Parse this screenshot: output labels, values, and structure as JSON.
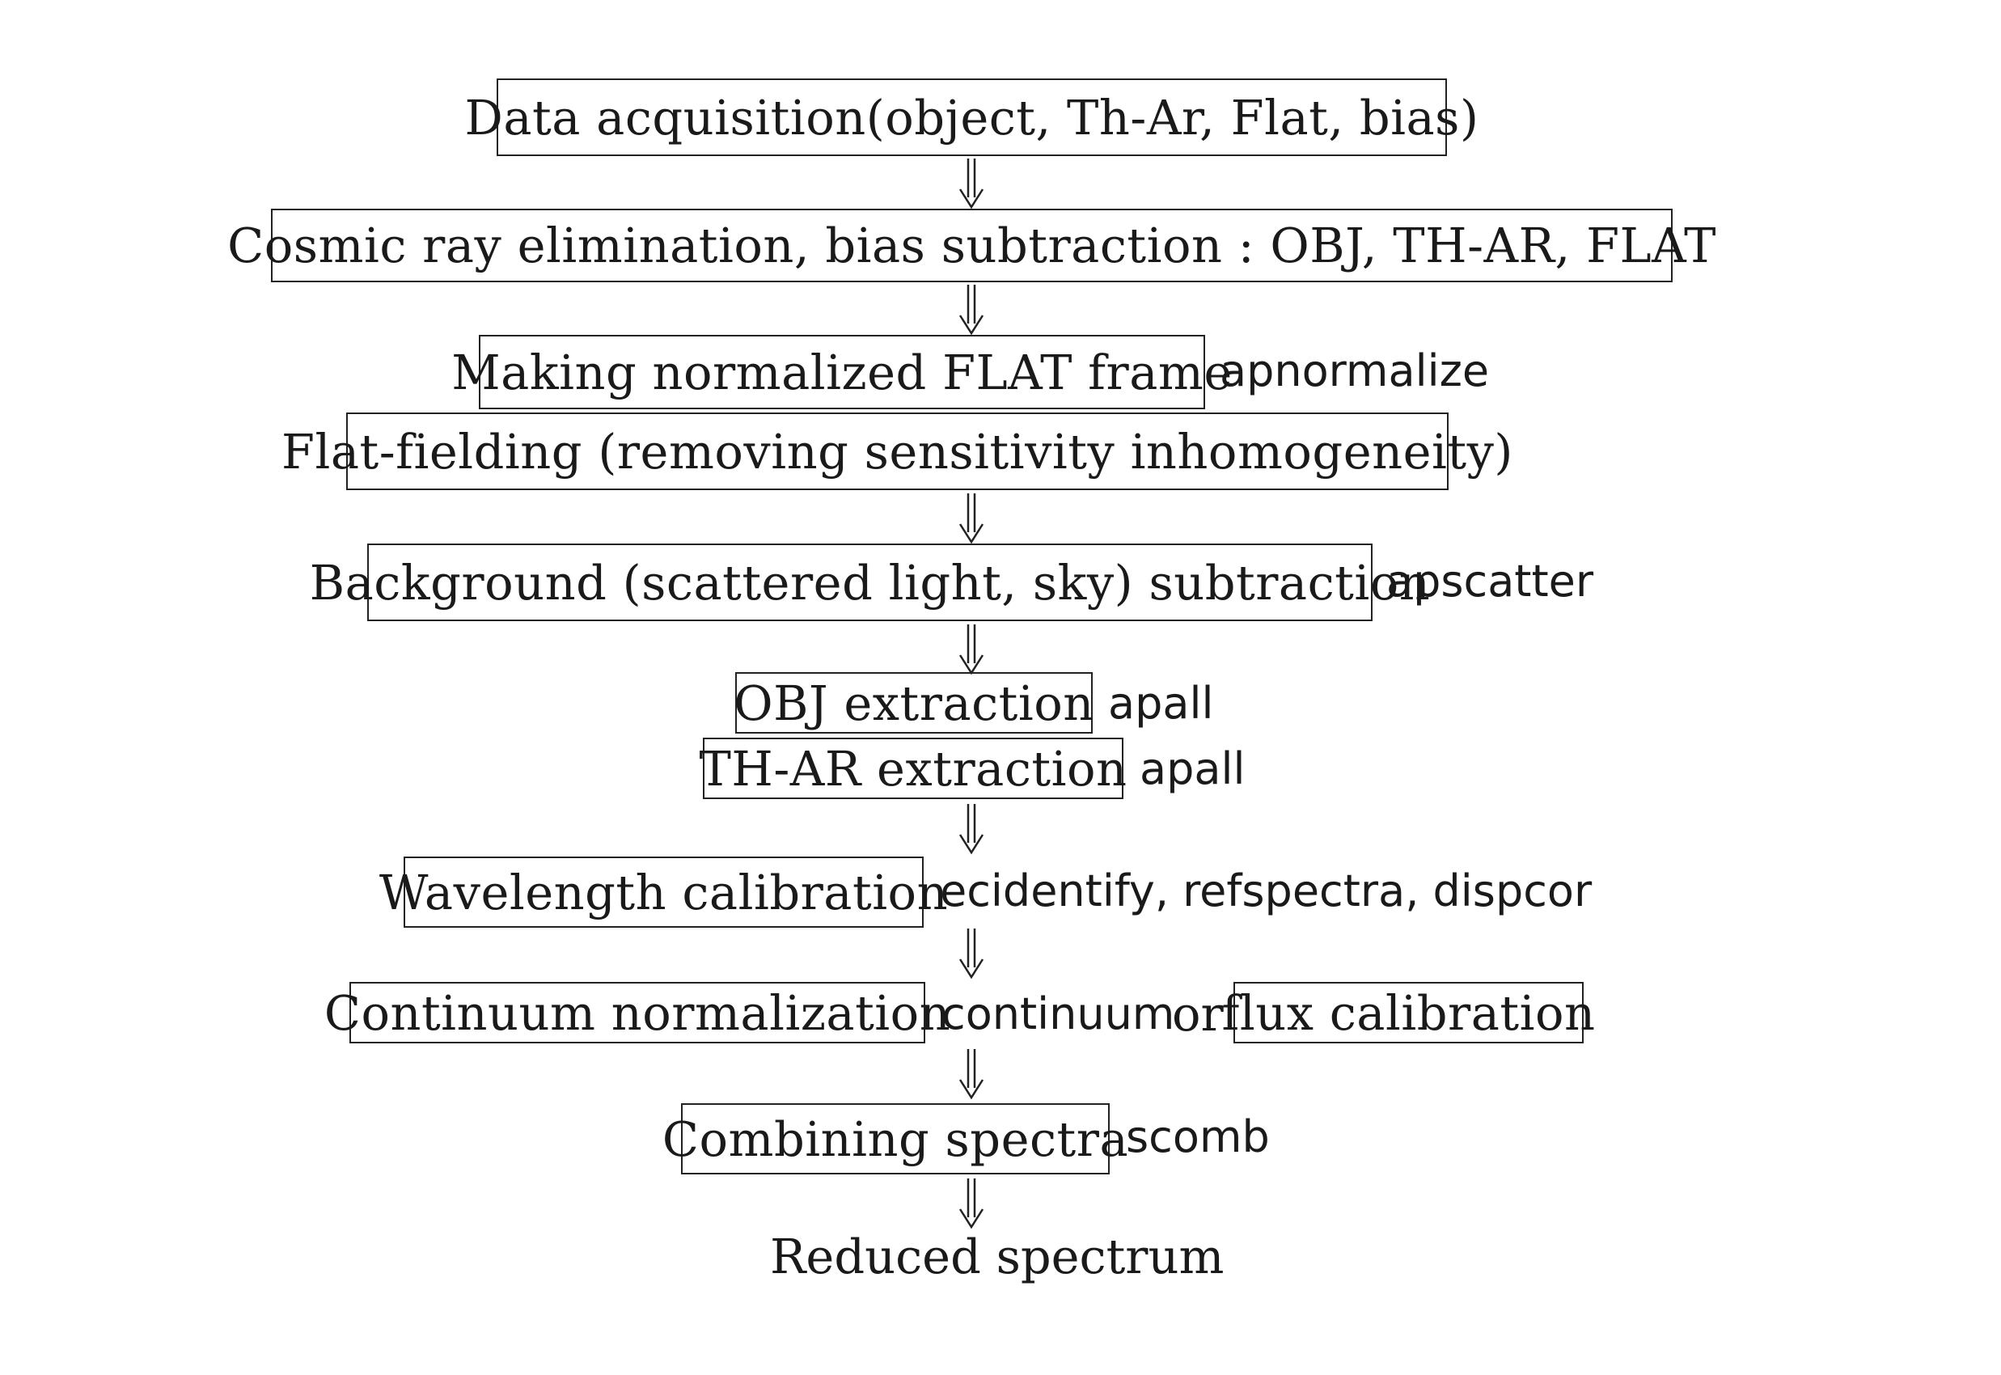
{
  "steps": {
    "data_acquisition": "Data acquisition(object, Th-Ar, Flat, bias)",
    "cosmic_ray": "Cosmic ray elimination, bias subtraction : OBJ, TH-AR, FLAT",
    "normalized_flat": "Making normalized FLAT frame",
    "flat_fielding": "Flat-fielding (removing sensitivity inhomogeneity)",
    "background": "Background (scattered light, sky) subtraction",
    "obj_extraction": "OBJ extraction",
    "thar_extraction": "TH-AR extraction",
    "wavelength": "Wavelength calibration",
    "continuum": "Continuum normalization",
    "flux": "flux calibration",
    "combining": "Combining spectra",
    "result": "Reduced spectrum"
  },
  "commands": {
    "apnormalize": "apnormalize",
    "apscatter": "apscatter",
    "apall_obj": "apall",
    "apall_thar": "apall",
    "wavelength_tasks": "ecidentify, refspectra, dispcor",
    "continuum": "continuum",
    "scomb": "scomb"
  },
  "connectors": {
    "or": "or"
  },
  "icons": {
    "arrow": "double-down-arrow-icon"
  }
}
